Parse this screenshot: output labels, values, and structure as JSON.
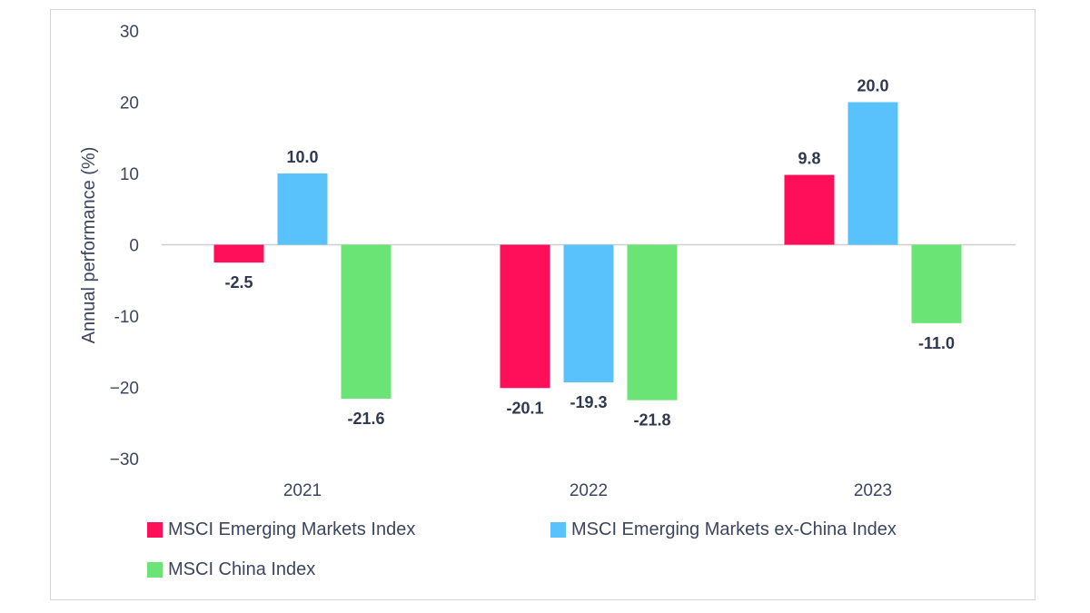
{
  "chart_data": {
    "type": "bar",
    "categories": [
      "2021",
      "2022",
      "2023"
    ],
    "series": [
      {
        "name": "MSCI Emerging Markets Index",
        "color": "#ff0f5a",
        "values": [
          -2.5,
          -20.1,
          9.8
        ],
        "labels": [
          "-2.5",
          "-20.1",
          "9.8"
        ]
      },
      {
        "name": "MSCI Emerging Markets ex-China Index",
        "color": "#59c1fb",
        "values": [
          10.0,
          -19.3,
          20.0
        ],
        "labels": [
          "10.0",
          "-19.3",
          "20.0"
        ]
      },
      {
        "name": "MSCI China Index",
        "color": "#69e475",
        "values": [
          -21.6,
          -21.8,
          -11.0
        ],
        "labels": [
          "-21.6",
          "-21.8",
          "-11.0"
        ]
      }
    ],
    "ylabel": "Annual performance (%)",
    "xlabel": "",
    "ylim": [
      -30,
      30
    ],
    "yticks": [
      "30",
      "20",
      "10",
      "0",
      "-10",
      "−20",
      "−30"
    ],
    "ytick_values": [
      30,
      20,
      10,
      0,
      -10,
      -20,
      -30
    ],
    "grid": false,
    "legend_position": "bottom"
  }
}
